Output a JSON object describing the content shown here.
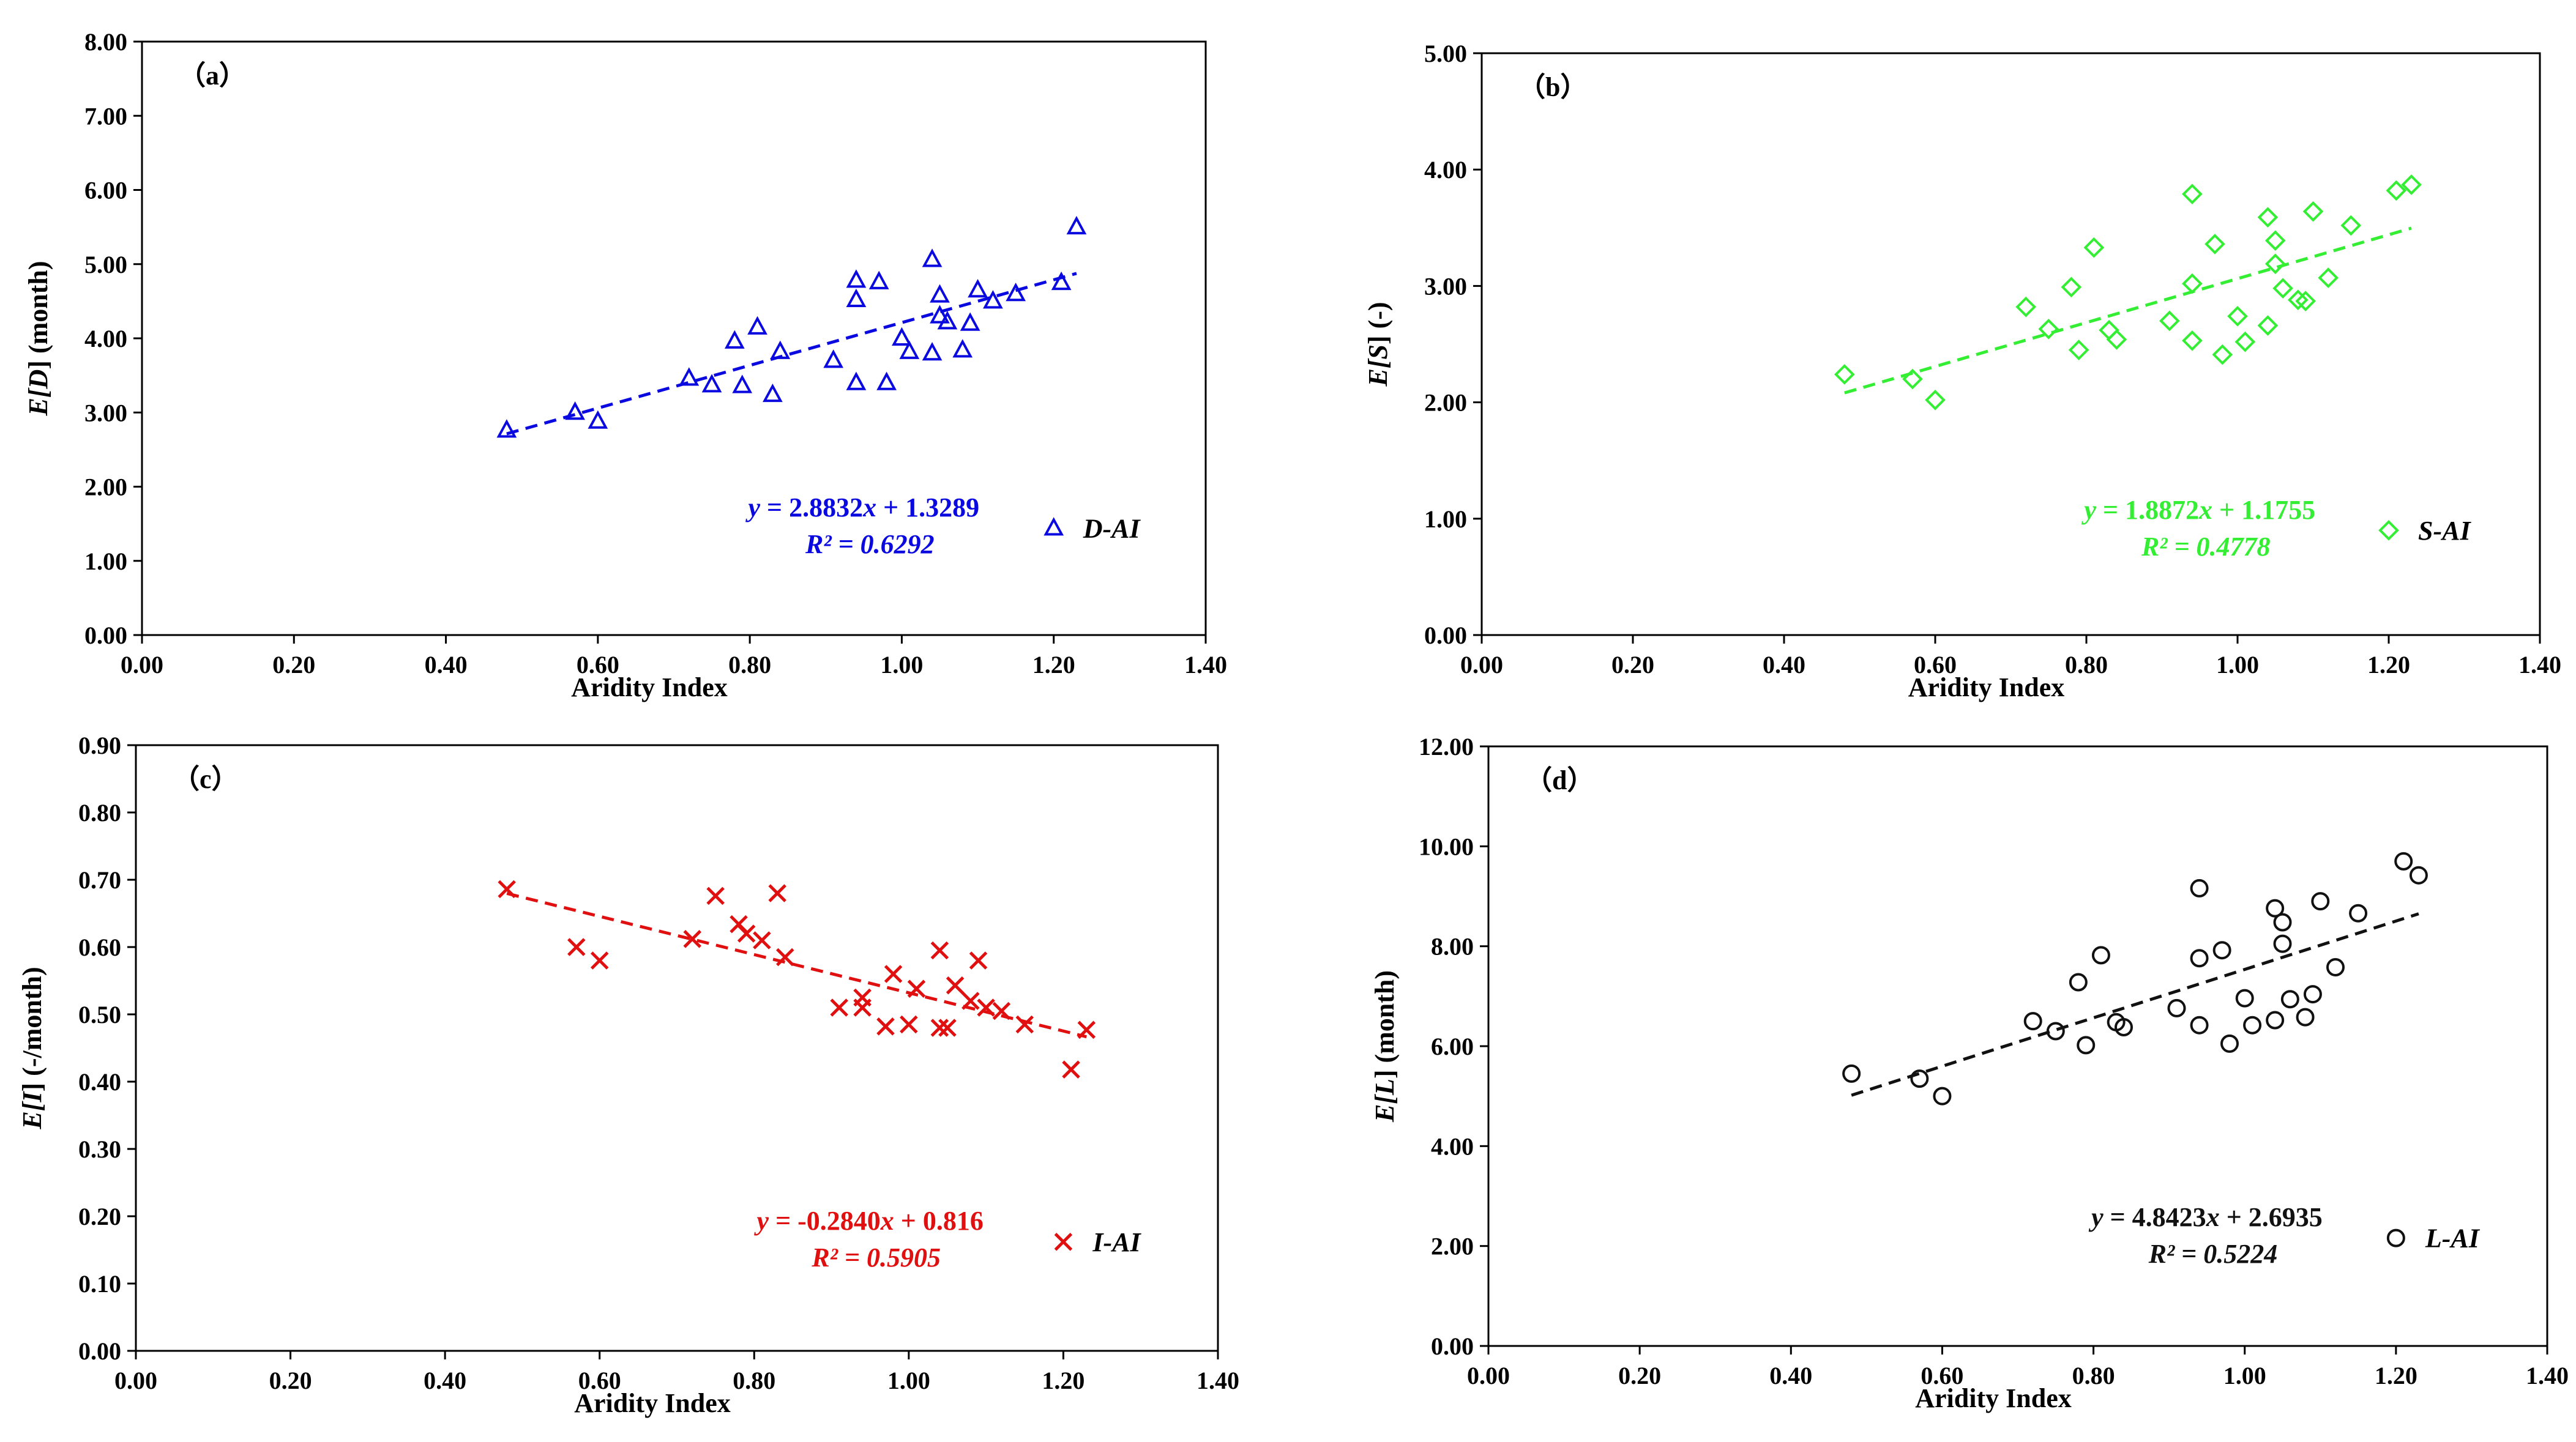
{
  "chart_data": [
    {
      "id": "a",
      "type": "scatter",
      "panel_label": "（a）",
      "title": "",
      "xlabel": "Aridity Index",
      "ylabel_pre": "E[",
      "ylabel_var": "D",
      "ylabel_post": "] (month)",
      "xlim": [
        0,
        1.4
      ],
      "ylim": [
        0,
        8
      ],
      "xticks": [
        "0.00",
        "0.20",
        "0.40",
        "0.60",
        "0.80",
        "1.00",
        "1.20",
        "1.40"
      ],
      "yticks": [
        "0.00",
        "1.00",
        "2.00",
        "3.00",
        "4.00",
        "5.00",
        "6.00",
        "7.00",
        "8.00"
      ],
      "color": "#0a0ae0",
      "marker": "triangle",
      "legend": "D-AI",
      "legend_position": "bottom-right",
      "equation": {
        "y": "y",
        "eq": " = 2.8832",
        "x": "x",
        "rest": " + 1.3289",
        "r2": "R² = 0.6292"
      },
      "trend": {
        "slope": 2.8832,
        "intercept": 1.3289,
        "x_start": 0.48,
        "x_end": 1.23
      },
      "points": [
        [
          0.48,
          2.76
        ],
        [
          0.57,
          3.0
        ],
        [
          0.6,
          2.88
        ],
        [
          0.72,
          3.46
        ],
        [
          0.75,
          3.37
        ],
        [
          0.78,
          3.96
        ],
        [
          0.79,
          3.36
        ],
        [
          0.81,
          4.15
        ],
        [
          0.83,
          3.24
        ],
        [
          0.84,
          3.82
        ],
        [
          0.91,
          3.7
        ],
        [
          0.94,
          4.78
        ],
        [
          0.94,
          4.52
        ],
        [
          0.94,
          3.4
        ],
        [
          0.97,
          4.76
        ],
        [
          0.98,
          3.4
        ],
        [
          1.0,
          4.0
        ],
        [
          1.01,
          3.82
        ],
        [
          1.04,
          5.06
        ],
        [
          1.04,
          3.8
        ],
        [
          1.05,
          4.58
        ],
        [
          1.05,
          4.3
        ],
        [
          1.06,
          4.22
        ],
        [
          1.08,
          3.84
        ],
        [
          1.09,
          4.2
        ],
        [
          1.1,
          4.65
        ],
        [
          1.12,
          4.5
        ],
        [
          1.15,
          4.6
        ],
        [
          1.21,
          4.75
        ],
        [
          1.23,
          5.5
        ]
      ]
    },
    {
      "id": "b",
      "type": "scatter",
      "panel_label": "（b）",
      "title": "",
      "xlabel": "Aridity Index",
      "ylabel_pre": "E[",
      "ylabel_var": "S",
      "ylabel_post": "] (-)",
      "xlim": [
        0,
        1.4
      ],
      "ylim": [
        0,
        5
      ],
      "xticks": [
        "0.00",
        "0.20",
        "0.40",
        "0.60",
        "0.80",
        "1.00",
        "1.20",
        "1.40"
      ],
      "yticks": [
        "0.00",
        "1.00",
        "2.00",
        "3.00",
        "4.00",
        "5.00"
      ],
      "color": "#33ee33",
      "marker": "diamond",
      "legend": "S-AI",
      "legend_position": "bottom-right",
      "equation": {
        "y": "y",
        "eq": " = 1.8872",
        "x": "x",
        "rest": " + 1.1755",
        "r2": "R² = 0.4778"
      },
      "trend": {
        "slope": 1.8872,
        "intercept": 1.1755,
        "x_start": 0.48,
        "x_end": 1.23
      },
      "points": [
        [
          0.48,
          2.24
        ],
        [
          0.57,
          2.2
        ],
        [
          0.6,
          2.02
        ],
        [
          0.72,
          2.82
        ],
        [
          0.75,
          2.63
        ],
        [
          0.78,
          2.99
        ],
        [
          0.79,
          2.45
        ],
        [
          0.81,
          3.33
        ],
        [
          0.83,
          2.62
        ],
        [
          0.84,
          2.54
        ],
        [
          0.91,
          2.7
        ],
        [
          0.94,
          3.79
        ],
        [
          0.94,
          3.02
        ],
        [
          0.94,
          2.53
        ],
        [
          0.97,
          3.36
        ],
        [
          0.98,
          2.41
        ],
        [
          1.0,
          2.74
        ],
        [
          1.01,
          2.52
        ],
        [
          1.04,
          3.59
        ],
        [
          1.04,
          2.66
        ],
        [
          1.05,
          3.39
        ],
        [
          1.05,
          3.19
        ],
        [
          1.06,
          2.98
        ],
        [
          1.08,
          2.88
        ],
        [
          1.09,
          2.87
        ],
        [
          1.1,
          3.64
        ],
        [
          1.12,
          3.07
        ],
        [
          1.15,
          3.52
        ],
        [
          1.21,
          3.82
        ],
        [
          1.23,
          3.87
        ]
      ]
    },
    {
      "id": "c",
      "type": "scatter",
      "panel_label": "（c）",
      "title": "",
      "xlabel": "Aridity Index",
      "ylabel_pre": "E[",
      "ylabel_var": "I",
      "ylabel_post": "] (-/month)",
      "xlim": [
        0,
        1.4
      ],
      "ylim": [
        0,
        0.9
      ],
      "xticks": [
        "0.00",
        "0.20",
        "0.40",
        "0.60",
        "0.80",
        "1.00",
        "1.20",
        "1.40"
      ],
      "yticks": [
        "0.00",
        "0.10",
        "0.20",
        "0.30",
        "0.40",
        "0.50",
        "0.60",
        "0.70",
        "0.80",
        "0.90"
      ],
      "color": "#e01010",
      "marker": "cross",
      "legend": "I-AI",
      "legend_position": "bottom-right",
      "equation": {
        "y": "y",
        "eq": " = -0.2840",
        "x": "x",
        "rest": " + 0.816",
        "r2": "R² = 0.5905"
      },
      "trend": {
        "slope": -0.284,
        "intercept": 0.816,
        "x_start": 0.48,
        "x_end": 1.23
      },
      "points": [
        [
          0.48,
          0.686
        ],
        [
          0.57,
          0.6
        ],
        [
          0.6,
          0.58
        ],
        [
          0.72,
          0.612
        ],
        [
          0.75,
          0.676
        ],
        [
          0.78,
          0.634
        ],
        [
          0.79,
          0.62
        ],
        [
          0.81,
          0.61
        ],
        [
          0.83,
          0.68
        ],
        [
          0.84,
          0.585
        ],
        [
          0.91,
          0.51
        ],
        [
          0.94,
          0.51
        ],
        [
          0.94,
          0.525
        ],
        [
          0.97,
          0.482
        ],
        [
          0.98,
          0.56
        ],
        [
          1.0,
          0.485
        ],
        [
          1.01,
          0.538
        ],
        [
          1.04,
          0.595
        ],
        [
          1.04,
          0.48
        ],
        [
          1.05,
          0.48
        ],
        [
          1.06,
          0.543
        ],
        [
          1.08,
          0.52
        ],
        [
          1.09,
          0.58
        ],
        [
          1.1,
          0.51
        ],
        [
          1.12,
          0.505
        ],
        [
          1.15,
          0.485
        ],
        [
          1.21,
          0.418
        ],
        [
          1.23,
          0.477
        ]
      ]
    },
    {
      "id": "d",
      "type": "scatter",
      "panel_label": "（d）",
      "title": "",
      "xlabel": "Aridity Index",
      "ylabel_pre": "E[",
      "ylabel_var": "L",
      "ylabel_post": "] (month)",
      "xlim": [
        0,
        1.4
      ],
      "ylim": [
        0,
        12
      ],
      "xticks": [
        "0.00",
        "0.20",
        "0.40",
        "0.60",
        "0.80",
        "1.00",
        "1.20",
        "1.40"
      ],
      "yticks": [
        "0.00",
        "2.00",
        "4.00",
        "6.00",
        "8.00",
        "10.00",
        "12.00"
      ],
      "color": "#111111",
      "marker": "circle",
      "legend": "L-AI",
      "legend_position": "bottom-right",
      "equation": {
        "y": "y",
        "eq": " = 4.8423",
        "x": "x",
        "rest": " + 2.6935",
        "r2": "R² = 0.5224"
      },
      "trend": {
        "slope": 4.8423,
        "intercept": 2.6935,
        "x_start": 0.48,
        "x_end": 1.23
      },
      "points": [
        [
          0.48,
          5.45
        ],
        [
          0.57,
          5.35
        ],
        [
          0.6,
          5.0
        ],
        [
          0.72,
          6.5
        ],
        [
          0.75,
          6.3
        ],
        [
          0.78,
          7.28
        ],
        [
          0.79,
          6.02
        ],
        [
          0.81,
          7.82
        ],
        [
          0.83,
          6.48
        ],
        [
          0.84,
          6.38
        ],
        [
          0.91,
          6.76
        ],
        [
          0.94,
          9.16
        ],
        [
          0.94,
          7.76
        ],
        [
          0.94,
          6.42
        ],
        [
          0.97,
          7.92
        ],
        [
          0.98,
          6.05
        ],
        [
          1.0,
          6.96
        ],
        [
          1.01,
          6.42
        ],
        [
          1.04,
          8.76
        ],
        [
          1.04,
          6.52
        ],
        [
          1.05,
          8.48
        ],
        [
          1.05,
          8.05
        ],
        [
          1.06,
          6.94
        ],
        [
          1.08,
          6.58
        ],
        [
          1.09,
          7.04
        ],
        [
          1.1,
          8.9
        ],
        [
          1.12,
          7.58
        ],
        [
          1.15,
          8.66
        ],
        [
          1.21,
          9.7
        ],
        [
          1.23,
          9.42
        ]
      ]
    }
  ]
}
